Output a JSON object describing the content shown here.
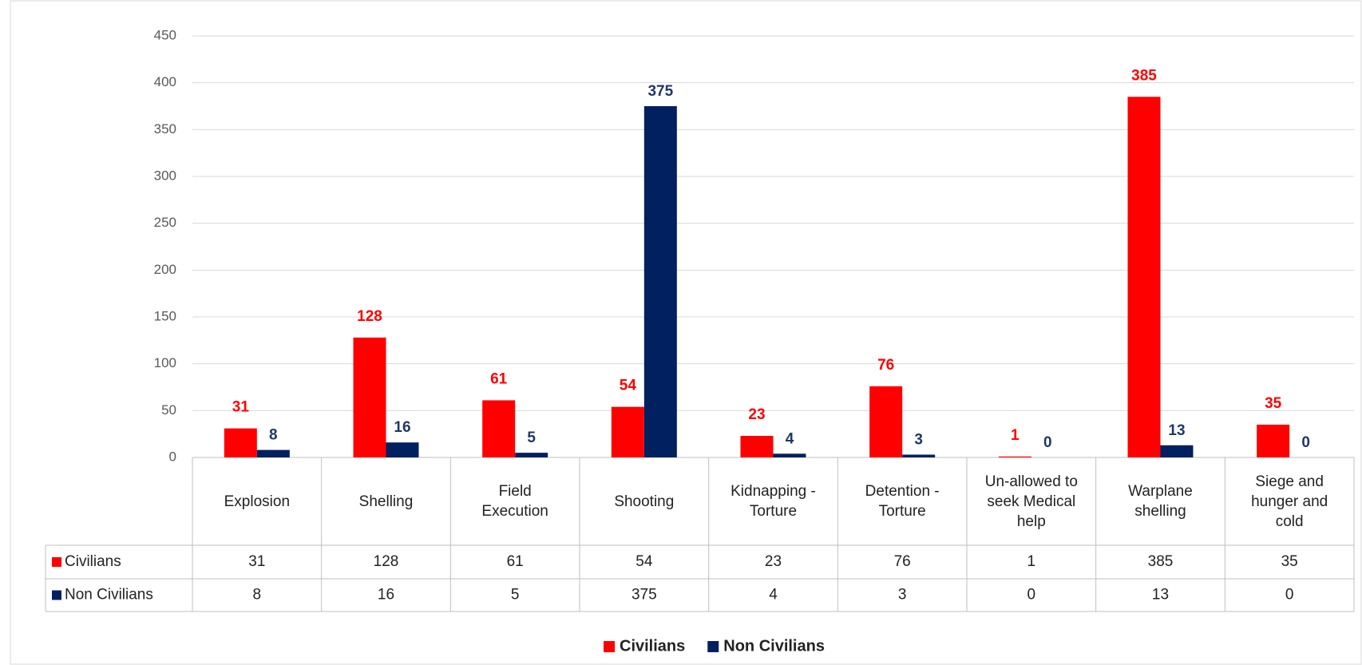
{
  "chart_data": {
    "type": "bar",
    "categories": [
      "Explosion",
      "Shelling",
      "Field Execution",
      "Shooting",
      "Kidnapping - Torture",
      "Detention - Torture",
      "Un-allowed to seek Medical help",
      "Warplane shelling",
      "Siege and hunger and cold"
    ],
    "series": [
      {
        "name": "Civilians",
        "color": "#ff0000",
        "label_color": "#ff0000",
        "values": [
          31,
          128,
          61,
          54,
          23,
          76,
          1,
          385,
          35
        ]
      },
      {
        "name": "Non Civilians",
        "color": "#002060",
        "label_color": "#1f3864",
        "values": [
          8,
          16,
          5,
          375,
          4,
          3,
          0,
          13,
          0
        ]
      }
    ],
    "ylim": [
      0,
      450
    ],
    "yticks": [
      0,
      50,
      100,
      150,
      200,
      250,
      300,
      350,
      400,
      450
    ],
    "grid": true,
    "legend": "bottom",
    "data_table": true
  }
}
